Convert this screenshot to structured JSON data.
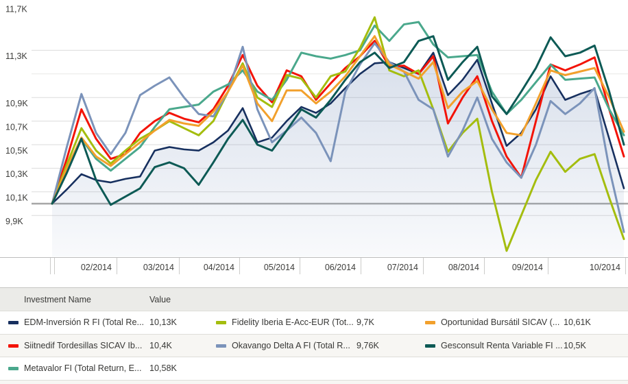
{
  "chart": {
    "y_axis_labels": [
      {
        "text": "11,7K",
        "value": 11.7
      },
      {
        "text": "11,3K",
        "value": 11.3
      },
      {
        "text": "10,9K",
        "value": 10.9
      },
      {
        "text": "10,7K",
        "value": 10.7
      },
      {
        "text": "10,5K",
        "value": 10.5
      },
      {
        "text": "10,3K",
        "value": 10.3
      },
      {
        "text": "10,1K",
        "value": 10.1
      },
      {
        "text": "9,9K",
        "value": 9.9
      }
    ],
    "unlabeled_gridline_values": [
      11.1
    ],
    "baseline_value": 10.0,
    "x_axis_labels": [
      "02/2014",
      "03/2014",
      "04/2014",
      "05/2014",
      "06/2014",
      "07/2014",
      "08/2014",
      "09/2014",
      "10/2014"
    ]
  },
  "chart_data": {
    "type": "line",
    "title": "",
    "xlabel": "",
    "ylabel": "",
    "x_description": "weekly observations, late Jan 2014 to late Oct 2014, values in thousands (K)",
    "x_tick_labels": [
      "02/2014",
      "03/2014",
      "04/2014",
      "05/2014",
      "06/2014",
      "07/2014",
      "08/2014",
      "09/2014",
      "10/2014"
    ],
    "ylim": [
      9.55,
      11.72
    ],
    "grid": true,
    "legend_position": "bottom-table",
    "series": [
      {
        "name": "EDM-Inversión R FI (Total Re...",
        "value_label": "10,13K",
        "final_value": 10.13,
        "color": "#17305f",
        "area": true,
        "values": [
          10.0,
          10.12,
          10.25,
          10.2,
          10.18,
          10.21,
          10.23,
          10.45,
          10.48,
          10.46,
          10.45,
          10.52,
          10.62,
          10.81,
          10.52,
          10.56,
          10.7,
          10.82,
          10.77,
          10.85,
          10.98,
          11.1,
          11.19,
          11.2,
          11.15,
          11.1,
          11.28,
          10.92,
          11.05,
          11.22,
          10.85,
          10.49,
          10.6,
          10.8,
          11.08,
          10.88,
          10.93,
          10.97,
          10.55,
          10.13
        ]
      },
      {
        "name": "Siitnedif Tordesillas SICAV Ib...",
        "value_label": "10,4K",
        "final_value": 10.4,
        "color": "#f31307",
        "area": false,
        "values": [
          10.0,
          10.38,
          10.8,
          10.55,
          10.38,
          10.42,
          10.6,
          10.7,
          10.77,
          10.72,
          10.69,
          10.8,
          11.0,
          11.26,
          11.0,
          10.86,
          11.13,
          11.08,
          10.88,
          11.02,
          11.15,
          11.25,
          11.38,
          11.16,
          11.17,
          11.1,
          11.25,
          10.68,
          10.9,
          11.08,
          10.7,
          10.4,
          10.22,
          10.7,
          11.18,
          11.13,
          11.18,
          11.24,
          10.8,
          10.4
        ]
      },
      {
        "name": "Metavalor FI (Total Return, E...",
        "value_label": "10,58K",
        "final_value": 10.58,
        "color": "#4aa88c",
        "area": false,
        "values": [
          10.0,
          10.28,
          10.55,
          10.38,
          10.28,
          10.38,
          10.48,
          10.65,
          10.8,
          10.82,
          10.84,
          10.95,
          11.01,
          11.13,
          10.95,
          10.88,
          11.05,
          11.28,
          11.25,
          11.23,
          11.26,
          11.3,
          11.51,
          11.38,
          11.52,
          11.54,
          11.35,
          11.24,
          11.25,
          11.26,
          10.95,
          10.76,
          10.88,
          11.03,
          11.18,
          11.05,
          11.06,
          11.07,
          10.8,
          10.58
        ]
      },
      {
        "name": "Fidelity Iberia E-Acc-EUR (Tot...",
        "value_label": "9,7K",
        "final_value": 9.7,
        "color": "#a4bd0e",
        "area": false,
        "values": [
          10.0,
          10.33,
          10.64,
          10.45,
          10.34,
          10.45,
          10.55,
          10.62,
          10.7,
          10.64,
          10.58,
          10.7,
          10.95,
          11.19,
          10.9,
          10.82,
          11.09,
          11.06,
          10.9,
          11.08,
          11.12,
          11.32,
          11.58,
          11.13,
          11.08,
          11.13,
          10.8,
          10.44,
          10.6,
          10.72,
          10.1,
          9.6,
          9.9,
          10.2,
          10.44,
          10.27,
          10.38,
          10.42,
          10.05,
          9.7
        ]
      },
      {
        "name": "Okavango Delta A FI (Total R...",
        "value_label": "9,76K",
        "final_value": 9.76,
        "color": "#7b93ba",
        "area": false,
        "values": [
          10.0,
          10.48,
          10.93,
          10.6,
          10.42,
          10.6,
          10.92,
          11.0,
          11.07,
          10.9,
          10.76,
          10.74,
          10.95,
          11.33,
          10.8,
          10.52,
          10.62,
          10.73,
          10.6,
          10.36,
          10.95,
          11.18,
          11.36,
          11.2,
          11.12,
          10.88,
          10.8,
          10.4,
          10.62,
          10.9,
          10.55,
          10.35,
          10.22,
          10.5,
          10.87,
          10.76,
          10.85,
          10.98,
          10.3,
          9.76
        ]
      },
      {
        "name": "Oportunidad Bursátil SICAV (...",
        "value_label": "10,61K",
        "final_value": 10.61,
        "color": "#f2a02c",
        "area": false,
        "values": [
          10.0,
          10.3,
          10.56,
          10.4,
          10.32,
          10.42,
          10.52,
          10.62,
          10.71,
          10.68,
          10.66,
          10.78,
          10.95,
          11.17,
          10.85,
          10.7,
          10.96,
          10.96,
          10.85,
          10.95,
          11.08,
          11.25,
          11.42,
          11.18,
          11.12,
          11.06,
          11.2,
          10.81,
          10.95,
          11.04,
          10.8,
          10.6,
          10.58,
          10.85,
          11.13,
          11.09,
          11.12,
          11.15,
          10.9,
          10.61
        ]
      },
      {
        "name": "Gesconsult Renta Variable FI ...",
        "value_label": "10,5K",
        "final_value": 10.5,
        "color": "#0d5a55",
        "area": false,
        "values": [
          10.0,
          10.26,
          10.55,
          10.2,
          9.99,
          10.06,
          10.13,
          10.31,
          10.35,
          10.3,
          10.16,
          10.35,
          10.55,
          10.71,
          10.5,
          10.45,
          10.62,
          10.8,
          10.73,
          10.88,
          11.05,
          11.2,
          11.28,
          11.15,
          11.2,
          11.38,
          11.42,
          11.05,
          11.2,
          11.33,
          10.91,
          10.76,
          10.95,
          11.15,
          11.41,
          11.25,
          11.28,
          11.34,
          10.95,
          10.5
        ]
      }
    ]
  },
  "legend": {
    "header": {
      "name": "Investment Name",
      "value": "Value"
    }
  },
  "colors": {
    "gridline": "#dbdbdb",
    "gridline_faint": "#e7e7e5",
    "baseline": "#a6a6a6",
    "axis_text": "#3c3c3a",
    "legend_bg": "#f4f4f1",
    "legend_header_bg": "#ebebe8",
    "area_fill": "#7c94bc"
  }
}
